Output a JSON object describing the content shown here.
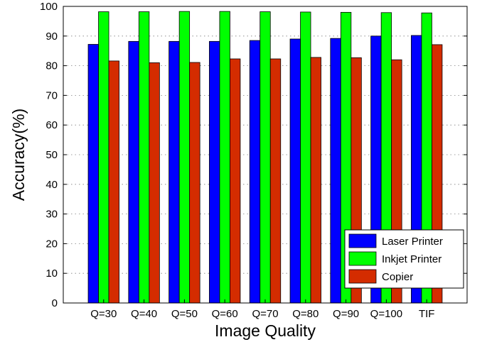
{
  "chart_data": {
    "type": "bar",
    "title": "",
    "xlabel": "Image Quality",
    "ylabel": "Accuracy(%)",
    "ylim": [
      0,
      100
    ],
    "yticks": [
      0,
      10,
      20,
      30,
      40,
      50,
      60,
      70,
      80,
      90,
      100
    ],
    "grid": true,
    "legend_position": "bottom-right",
    "categories": [
      "Q=30",
      "Q=40",
      "Q=50",
      "Q=60",
      "Q=70",
      "Q=80",
      "Q=90",
      "Q=100",
      "TIF"
    ],
    "series": [
      {
        "name": "Laser Printer",
        "color": "#0000ff",
        "values": [
          87.2,
          88.2,
          88.2,
          88.2,
          88.5,
          89.0,
          89.2,
          90.0,
          90.2
        ]
      },
      {
        "name": "Inkjet Printer",
        "color": "#00ff00",
        "values": [
          98.2,
          98.2,
          98.3,
          98.3,
          98.2,
          98.1,
          98.0,
          97.9,
          97.8
        ]
      },
      {
        "name": "Copier",
        "color": "#d42c00",
        "values": [
          81.6,
          81.0,
          81.1,
          82.3,
          82.3,
          82.8,
          82.7,
          82.0,
          87.1
        ]
      }
    ]
  }
}
